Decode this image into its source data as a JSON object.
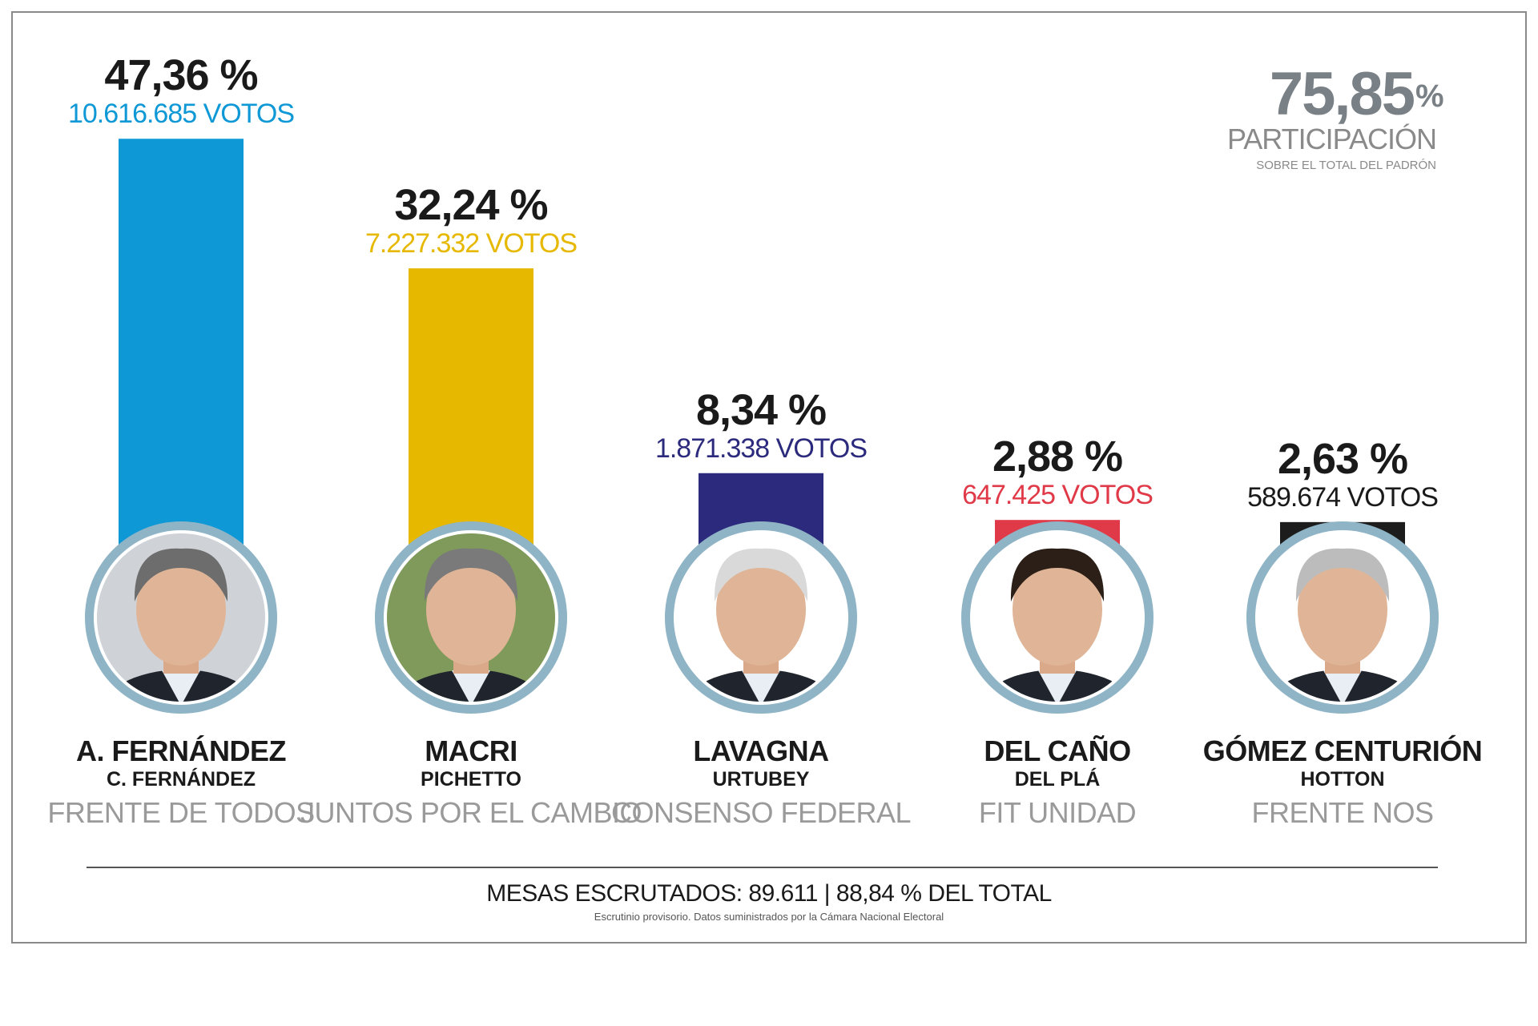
{
  "chart_data": {
    "type": "bar",
    "categories": [
      "A. FERNÁNDEZ",
      "MACRI",
      "LAVAGNA",
      "DEL CAÑO",
      "GÓMEZ CENTURIÓN"
    ],
    "values": [
      47.36,
      32.24,
      8.34,
      2.88,
      2.63
    ],
    "value_labels": [
      "47,36 %",
      "32,24 %",
      "8,34 %",
      "2,88 %",
      "2,63 %"
    ],
    "votes_labels": [
      "10.616.685 VOTOS",
      "7.227.332 VOTOS",
      "1.871.338 VOTOS",
      "647.425 VOTOS",
      "589.674 VOTOS"
    ],
    "running_mates": [
      "C. FERNÁNDEZ",
      "PICHETTO",
      "URTUBEY",
      "DEL PLÁ",
      "HOTTON"
    ],
    "parties": [
      "FRENTE DE TODOS",
      "JUNTOS POR EL CAMBIO",
      "CONSENSO FEDERAL",
      "FIT UNIDAD",
      "FRENTE NOS"
    ],
    "colors": [
      "#0f98d6",
      "#e6b800",
      "#2c2a7c",
      "#e03a48",
      "#1c1c1c"
    ],
    "votes_colors": [
      "#0f98d6",
      "#e6b800",
      "#2c2a7c",
      "#e03a48",
      "#1a1a1a"
    ],
    "photo_ring_color": "#8fb4c6",
    "grid": false,
    "legend": "none"
  },
  "participation": {
    "value": "75,85",
    "unit": "%",
    "label": "PARTICIPACIÓN",
    "sublabel": "SOBRE EL TOTAL DEL PADRÓN"
  },
  "footer": {
    "main": "MESAS ESCRUTADOS: 89.611 | 88,84 % DEL TOTAL",
    "note": "Escrutinio provisorio. Datos suministrados por la Cámara Nacional Electoral"
  }
}
